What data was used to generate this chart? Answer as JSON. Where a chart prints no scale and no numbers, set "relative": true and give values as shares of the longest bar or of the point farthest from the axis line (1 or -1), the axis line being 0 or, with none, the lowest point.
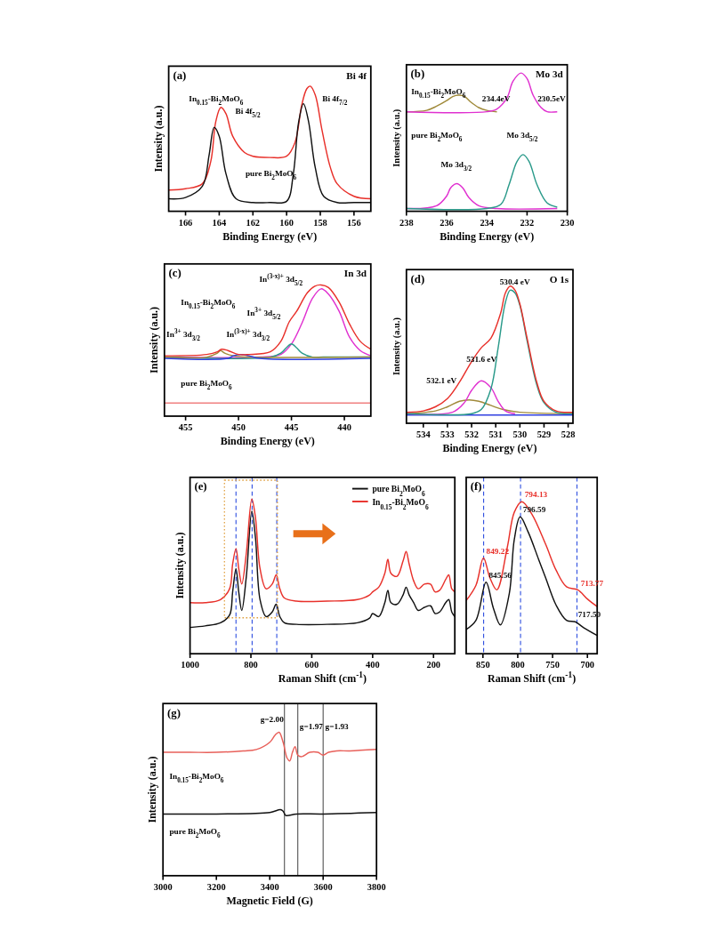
{
  "chart_data": [
    {
      "type": "line",
      "relative": true,
      "title": "(a)",
      "subtitle": "Bi 4f",
      "xlabel": "Binding Energy (eV)",
      "ylabel": "Intensity (a.u.)",
      "xlim": [
        167,
        155
      ],
      "xticks": [
        166,
        164,
        162,
        160,
        158,
        156
      ],
      "series": [
        {
          "color": "#e8302a",
          "x": [
            167,
            166,
            165,
            164.5,
            164.2,
            163.9,
            163.6,
            163.2,
            162.5,
            162,
            161,
            160,
            159.5,
            159.1,
            158.8,
            158.6,
            158.3,
            157.9,
            157.4,
            157,
            156,
            155
          ],
          "values": [
            0.17,
            0.18,
            0.22,
            0.4,
            0.72,
            0.83,
            0.78,
            0.6,
            0.47,
            0.44,
            0.43,
            0.44,
            0.55,
            0.85,
            0.98,
            1.0,
            0.93,
            0.65,
            0.35,
            0.22,
            0.12,
            0.1
          ]
        },
        {
          "color": "#111111",
          "x": [
            167,
            166,
            165,
            164.6,
            164.3,
            164,
            163.6,
            163,
            162,
            161,
            160,
            159.6,
            159.3,
            159,
            158.7,
            158.3,
            157.8,
            157,
            156,
            155
          ],
          "values": [
            0.1,
            0.11,
            0.2,
            0.45,
            0.67,
            0.6,
            0.3,
            0.1,
            0.07,
            0.07,
            0.08,
            0.3,
            0.7,
            0.86,
            0.72,
            0.35,
            0.12,
            0.07,
            0.07,
            0.07
          ]
        }
      ],
      "annotations": [
        "In$_{0.15}$-Bi$_{2}$MoO$_{6}$",
        "Bi 4f$_{5/2}$",
        "Bi 4f$_{7/2}$",
        "pure Bi$_{2}$MoO$_{6}$"
      ]
    },
    {
      "type": "line",
      "relative": true,
      "title": "(b)",
      "subtitle": "Mo 3d",
      "xlabel": "Binding Energy (eV)",
      "ylabel": "Intensity (a.u.)",
      "xlim": [
        238,
        230
      ],
      "xticks": [
        238,
        236,
        234,
        232,
        230
      ],
      "series": [
        {
          "color": "#a08a3a",
          "x": [
            238,
            237,
            236.5,
            236,
            235.7,
            235.4,
            235.1,
            234.8,
            234.4,
            234,
            233.5
          ],
          "values": [
            0.72,
            0.73,
            0.76,
            0.8,
            0.83,
            0.84,
            0.83,
            0.79,
            0.75,
            0.73,
            0.72
          ]
        },
        {
          "color": "#e030d0",
          "x": [
            238,
            234,
            233.5,
            233,
            232.7,
            232.3,
            232,
            231.7,
            231.3,
            231,
            230.5
          ],
          "values": [
            0.72,
            0.72,
            0.74,
            0.82,
            0.94,
            1.0,
            0.96,
            0.84,
            0.75,
            0.72,
            0.72
          ]
        },
        {
          "color": "#e030d0",
          "x": [
            238,
            236.5,
            236,
            235.8,
            235.5,
            235.2,
            234.9,
            234.4,
            233.5,
            230.5
          ],
          "values": [
            0.02,
            0.04,
            0.11,
            0.17,
            0.2,
            0.17,
            0.1,
            0.04,
            0.02,
            0.02
          ]
        },
        {
          "color": "#2a9a8a",
          "x": [
            238,
            234,
            233.3,
            232.9,
            232.5,
            232.2,
            231.9,
            231.5,
            231,
            230.5
          ],
          "values": [
            0.02,
            0.02,
            0.05,
            0.19,
            0.36,
            0.41,
            0.36,
            0.19,
            0.06,
            0.03
          ]
        }
      ],
      "annotations": [
        "In$_{0.15}$-Bi$_{2}$MoO$_{6}$",
        "234.4eV",
        "230.5eV",
        "pure Bi$_{2}$MoO$_{6}$",
        "Mo 3d$_{3/2}$",
        "Mo 3d$_{5/2}$"
      ]
    },
    {
      "type": "line",
      "relative": true,
      "title": "(c)",
      "subtitle": "In 3d",
      "xlabel": "Binding Energy (eV)",
      "ylabel": "Intensity (a.u.)",
      "xlim": [
        457,
        437.5
      ],
      "xticks": [
        455,
        450,
        445,
        440
      ],
      "series": [
        {
          "color": "#e030d0",
          "x": [
            457,
            448,
            446,
            445,
            444,
            443,
            442.2,
            441.5,
            440.5,
            439.5,
            438.5,
            437.5
          ],
          "values": [
            0.45,
            0.45,
            0.47,
            0.55,
            0.71,
            0.9,
            0.97,
            0.93,
            0.8,
            0.6,
            0.5,
            0.46
          ]
        },
        {
          "color": "#2a9a8a",
          "x": [
            457,
            447,
            446,
            445.5,
            445,
            444.5,
            444,
            443,
            442,
            437.5
          ],
          "values": [
            0.45,
            0.45,
            0.48,
            0.52,
            0.55,
            0.52,
            0.48,
            0.45,
            0.45,
            0.45
          ]
        },
        {
          "color": "#a08a3a",
          "x": [
            457,
            453,
            452,
            451.7,
            451.3,
            450.5,
            449,
            437.5
          ],
          "values": [
            0.45,
            0.45,
            0.48,
            0.5,
            0.48,
            0.46,
            0.45,
            0.45
          ]
        },
        {
          "color": "#3040e0",
          "x": [
            457,
            451,
            450.5,
            449.8,
            449,
            448,
            437.5
          ],
          "values": [
            0.44,
            0.44,
            0.46,
            0.47,
            0.46,
            0.44,
            0.44
          ]
        },
        {
          "color": "#e8302a",
          "x": [
            457,
            453,
            452,
            451.6,
            451,
            450,
            449,
            447,
            446,
            445.2,
            444.5,
            443.5,
            442.8,
            442.2,
            441.5,
            440.5,
            439.5,
            438.5,
            437.5
          ],
          "values": [
            0.46,
            0.47,
            0.49,
            0.51,
            0.5,
            0.47,
            0.47,
            0.49,
            0.57,
            0.72,
            0.8,
            0.94,
            0.99,
            1.0,
            0.98,
            0.87,
            0.7,
            0.57,
            0.51
          ]
        },
        {
          "color": "#f08080",
          "x": [
            457,
            452,
            447,
            442,
            437.5
          ],
          "values": [
            0.1,
            0.1,
            0.1,
            0.1,
            0.1
          ]
        }
      ],
      "annotations": [
        "In$_{0.15}$-Bi$_{2}$MoO$_{6}$",
        "In$^{3+}$ 3d$_{3/2}$",
        "In$^{(3-x)+}$ 3d$_{3/2}$",
        "In$^{3+}$ 3d$_{5/2}$",
        "In$^{(3-x)+}$ 3d$_{5/2}$",
        "pure Bi$_{2}$MoO$_{6}$"
      ]
    },
    {
      "type": "line",
      "relative": true,
      "title": "(d)",
      "subtitle": "O 1s",
      "xlabel": "Binding Energy (eV)",
      "ylabel": "Intensity (a.u.)",
      "xlim": [
        534.7,
        527.8
      ],
      "xticks": [
        534,
        533,
        532,
        531,
        530,
        529,
        528
      ],
      "series": [
        {
          "color": "#3040e0",
          "x": [
            534.7,
            527.8
          ],
          "values": [
            0.06,
            0.06
          ]
        },
        {
          "color": "#a08a3a",
          "x": [
            534.7,
            533.5,
            533,
            532.5,
            532.1,
            531.7,
            531.2,
            530.7,
            530,
            527.8
          ],
          "values": [
            0.07,
            0.09,
            0.12,
            0.16,
            0.17,
            0.16,
            0.13,
            0.1,
            0.08,
            0.07
          ]
        },
        {
          "color": "#e030d0",
          "x": [
            534.7,
            532.8,
            532.3,
            532,
            531.6,
            531.2,
            530.9,
            530.6,
            530.2
          ],
          "values": [
            0.07,
            0.08,
            0.15,
            0.24,
            0.31,
            0.26,
            0.16,
            0.09,
            0.07
          ]
        },
        {
          "color": "#2a9a8a",
          "x": [
            534.7,
            532,
            531.6,
            531.2,
            530.9,
            530.6,
            530.4,
            530.2,
            530,
            529.7,
            529.3,
            529,
            528.5,
            527.8
          ],
          "values": [
            0.07,
            0.07,
            0.1,
            0.25,
            0.55,
            0.88,
            0.97,
            0.95,
            0.86,
            0.6,
            0.28,
            0.15,
            0.08,
            0.07
          ]
        },
        {
          "color": "#e8302a",
          "x": [
            534.7,
            534,
            533.5,
            533,
            532.5,
            532,
            531.6,
            531.2,
            530.8,
            530.6,
            530.4,
            530.2,
            530,
            529.7,
            529.3,
            529,
            528.5,
            527.8
          ],
          "values": [
            0.08,
            0.09,
            0.12,
            0.18,
            0.3,
            0.45,
            0.55,
            0.62,
            0.8,
            0.95,
            1.0,
            0.97,
            0.87,
            0.62,
            0.3,
            0.16,
            0.09,
            0.08
          ]
        }
      ],
      "annotations": [
        "530.4 eV",
        "531.6 eV",
        "532.1 eV"
      ]
    },
    {
      "type": "line",
      "relative": true,
      "title": "(e)",
      "xlabel": "Raman Shift (cm$^{-1}$)",
      "ylabel": "Intensity (a.u.)",
      "xlim": [
        1000,
        130
      ],
      "xticks": [
        1000,
        800,
        600,
        400,
        200
      ],
      "legend": "top right",
      "series": [
        {
          "name": "pure Bi$_{2}$MoO$_{6}$",
          "color": "#111111",
          "x": [
            1000,
            950,
            900,
            870,
            860,
            849,
            840,
            830,
            815,
            797,
            785,
            770,
            750,
            730,
            717,
            705,
            690,
            650,
            550,
            450,
            410,
            400,
            380,
            360,
            350,
            340,
            320,
            300,
            290,
            280,
            265,
            250,
            230,
            210,
            195,
            180,
            160,
            150,
            140,
            130
          ],
          "values": [
            0.17,
            0.18,
            0.2,
            0.25,
            0.4,
            0.55,
            0.4,
            0.28,
            0.5,
            0.92,
            0.75,
            0.35,
            0.24,
            0.27,
            0.32,
            0.24,
            0.2,
            0.19,
            0.19,
            0.2,
            0.23,
            0.26,
            0.24,
            0.33,
            0.41,
            0.33,
            0.32,
            0.38,
            0.43,
            0.38,
            0.33,
            0.28,
            0.3,
            0.31,
            0.26,
            0.27,
            0.33,
            0.35,
            0.27,
            0.24
          ]
        },
        {
          "name": "In$_{0.15}$-Bi$_{2}$MoO$_{6}$",
          "color": "#e8302a",
          "x": [
            1000,
            950,
            900,
            870,
            860,
            849,
            840,
            830,
            815,
            797,
            785,
            770,
            750,
            730,
            717,
            705,
            690,
            650,
            550,
            450,
            410,
            400,
            380,
            360,
            350,
            340,
            320,
            300,
            290,
            280,
            265,
            250,
            230,
            210,
            195,
            180,
            160,
            150,
            140,
            130
          ],
          "values": [
            0.33,
            0.33,
            0.35,
            0.42,
            0.58,
            0.68,
            0.55,
            0.45,
            0.65,
            1.0,
            0.88,
            0.55,
            0.42,
            0.45,
            0.51,
            0.42,
            0.36,
            0.34,
            0.34,
            0.35,
            0.38,
            0.4,
            0.43,
            0.52,
            0.61,
            0.52,
            0.5,
            0.6,
            0.66,
            0.58,
            0.47,
            0.42,
            0.45,
            0.45,
            0.4,
            0.41,
            0.48,
            0.51,
            0.42,
            0.4
          ]
        }
      ],
      "ref_lines": [
        {
          "axis": "x",
          "value": 849,
          "color": "#3050e0",
          "line_style": "dashed"
        },
        {
          "axis": "x",
          "value": 796,
          "color": "#3050e0",
          "line_style": "dashed"
        },
        {
          "axis": "x",
          "value": 715,
          "color": "#3050e0",
          "line_style": "dashed"
        }
      ]
    },
    {
      "type": "line",
      "relative": true,
      "title": "(f)",
      "xlabel": "Raman Shift (cm$^{-1}$)",
      "xlim": [
        874,
        686
      ],
      "xticks": [
        850,
        800,
        750,
        700
      ],
      "series": [
        {
          "color": "#e8302a",
          "x": [
            874,
            860,
            849.22,
            840,
            830,
            815,
            805,
            794.13,
            780,
            760,
            745,
            730,
            713.77,
            700,
            686
          ],
          "values": [
            0.35,
            0.45,
            0.63,
            0.5,
            0.42,
            0.7,
            0.93,
            1.0,
            0.92,
            0.72,
            0.55,
            0.44,
            0.42,
            0.36,
            0.31
          ]
        },
        {
          "color": "#111111",
          "x": [
            874,
            860,
            845.56,
            835,
            825,
            812,
            805,
            796.59,
            785,
            770,
            760,
            745,
            730,
            717.5,
            705,
            686
          ],
          "values": [
            0.16,
            0.22,
            0.47,
            0.3,
            0.19,
            0.4,
            0.75,
            0.9,
            0.8,
            0.62,
            0.5,
            0.32,
            0.22,
            0.21,
            0.17,
            0.12
          ]
        }
      ],
      "ref_lines": [
        {
          "axis": "x",
          "value": 849,
          "color": "#3050e0",
          "line_style": "dashed"
        },
        {
          "axis": "x",
          "value": 796,
          "color": "#3050e0",
          "line_style": "dashed"
        },
        {
          "axis": "x",
          "value": 715,
          "color": "#3050e0",
          "line_style": "dashed"
        }
      ],
      "annotations": [
        {
          "text": "849.22",
          "x": 849.22,
          "y": 0.63
        },
        {
          "text": "794.13",
          "x": 794.13,
          "y": 1.0
        },
        {
          "text": "713.77",
          "x": 713.77,
          "y": 0.42
        },
        {
          "text": "845.56",
          "x": 845.56,
          "y": 0.47
        },
        {
          "text": "796.59",
          "x": 796.59,
          "y": 0.9
        },
        {
          "text": "717.50",
          "x": 717.5,
          "y": 0.21
        }
      ]
    },
    {
      "type": "line",
      "relative": true,
      "title": "(g)",
      "xlabel": "Magnetic Field (G)",
      "ylabel": "Intensity (a.u.)",
      "xlim": [
        3000,
        3800
      ],
      "xticks": [
        3000,
        3200,
        3400,
        3600,
        3800
      ],
      "series": [
        {
          "color": "#e8605a",
          "x": [
            3000,
            3100,
            3200,
            3300,
            3350,
            3400,
            3420,
            3435,
            3450,
            3465,
            3475,
            3485,
            3495,
            3505,
            3520,
            3550,
            3580,
            3600,
            3620,
            3650,
            3700,
            3800
          ],
          "values": [
            0.86,
            0.86,
            0.86,
            0.87,
            0.88,
            0.93,
            0.98,
            1.0,
            0.93,
            0.82,
            0.8,
            0.86,
            0.9,
            0.84,
            0.83,
            0.86,
            0.86,
            0.84,
            0.86,
            0.87,
            0.87,
            0.88
          ]
        },
        {
          "color": "#111111",
          "x": [
            3000,
            3200,
            3400,
            3440,
            3450,
            3460,
            3500,
            3600,
            3800
          ],
          "values": [
            0.43,
            0.43,
            0.44,
            0.46,
            0.45,
            0.42,
            0.43,
            0.43,
            0.44
          ]
        }
      ],
      "ref_lines": [
        {
          "axis": "x",
          "value": 3455,
          "color": "#555555"
        },
        {
          "axis": "x",
          "value": 3505,
          "color": "#555555"
        },
        {
          "axis": "x",
          "value": 3600,
          "color": "#555555"
        }
      ],
      "annotations": [
        "g=2.00",
        "g=1.97",
        "g=1.93",
        "In$_{0.15}$-Bi$_{2}$MoO$_{6}$",
        "pure Bi$_{2}$MoO$_{6}$"
      ]
    }
  ]
}
